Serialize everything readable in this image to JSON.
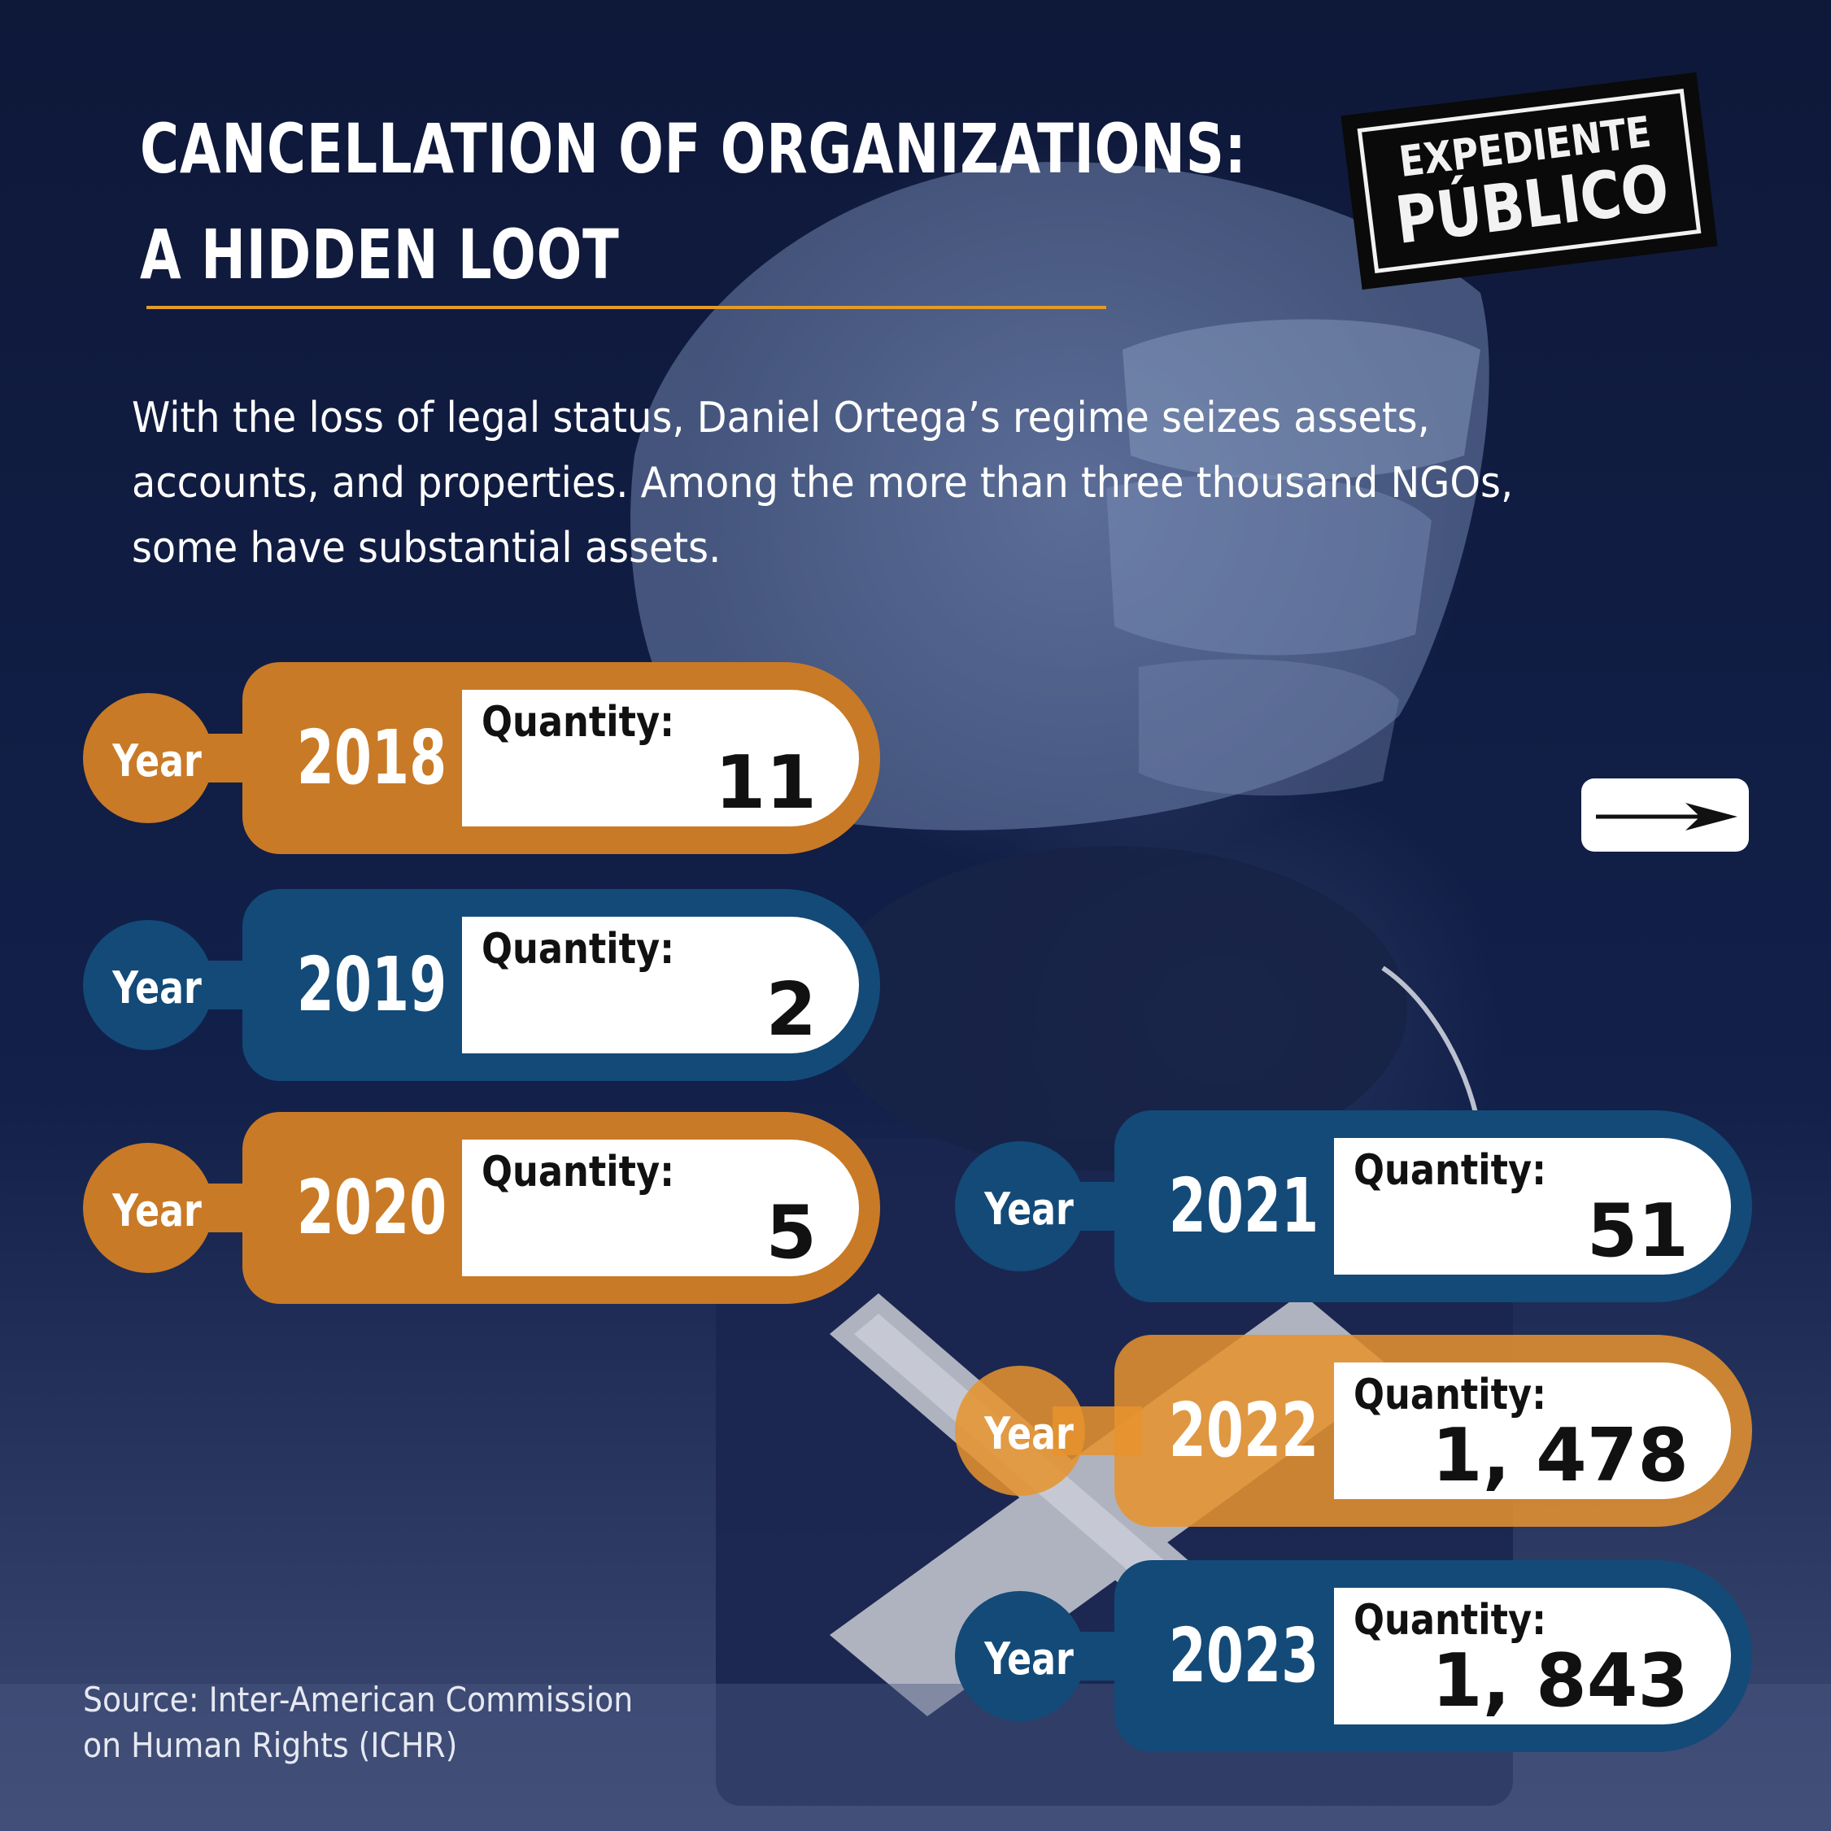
{
  "title": {
    "line1": "CANCELLATION OF ORGANIZATIONS:",
    "line2": "A HIDDEN LOOT"
  },
  "intro": "With the loss of legal status, Daniel Ortega’s regime seizes assets,\naccounts, and properties. Among the more than three thousand NGOs,\nsome have substantial assets.",
  "logo": {
    "line1": "EXPEDIENTE",
    "line2": "PÚBLICO"
  },
  "next_button": {
    "icon": "arrow-right-icon"
  },
  "cards": [
    {
      "year_label": "Year",
      "year": "2018",
      "quantity_label": "Quantity:",
      "quantity": "11",
      "color": "orange"
    },
    {
      "year_label": "Year",
      "year": "2019",
      "quantity_label": "Quantity:",
      "quantity": "2",
      "color": "blue"
    },
    {
      "year_label": "Year",
      "year": "2020",
      "quantity_label": "Quantity:",
      "quantity": "5",
      "color": "orange"
    },
    {
      "year_label": "Year",
      "year": "2021",
      "quantity_label": "Quantity:",
      "quantity": "51",
      "color": "blue"
    },
    {
      "year_label": "Year",
      "year": "2022",
      "quantity_label": "Quantity:",
      "quantity": "1, 478",
      "color": "orange"
    },
    {
      "year_label": "Year",
      "year": "2023",
      "quantity_label": "Quantity:",
      "quantity": "1, 843",
      "color": "blue"
    }
  ],
  "source": "Source: Inter-American Commission\n on Human Rights (ICHR)",
  "colors": {
    "background": "#0f1a3d",
    "accent_orange": "#c97a26",
    "accent_blue": "#134a78",
    "rule": "#e39a2a"
  }
}
